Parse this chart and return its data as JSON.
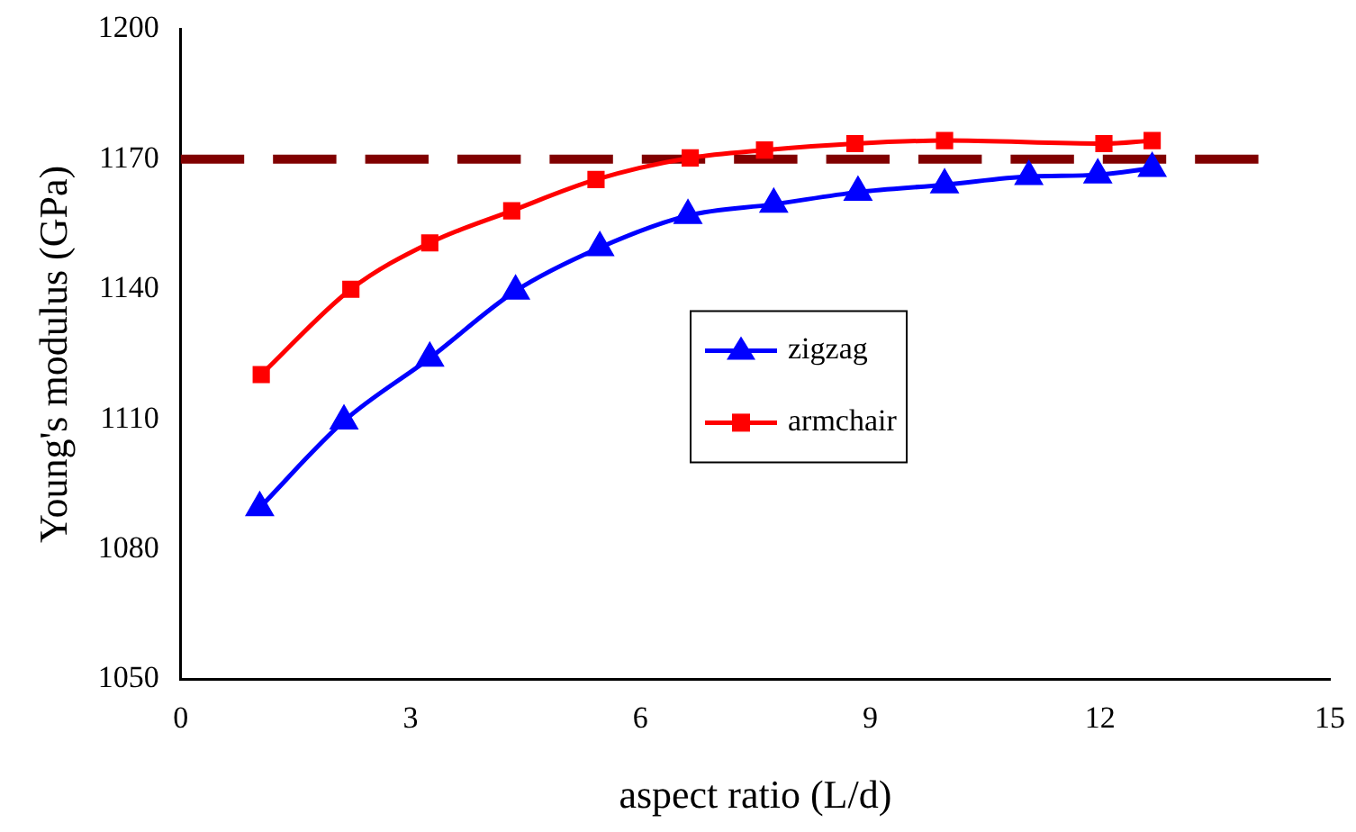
{
  "chart_data": {
    "type": "line",
    "xlabel": "aspect ratio (L/d)",
    "ylabel": "Young's modulus (GPa)",
    "xlim": [
      0,
      15
    ],
    "xticks": [
      0,
      3,
      6,
      9,
      12,
      15
    ],
    "ylim": [
      1050,
      1200
    ],
    "yticks": [
      1050,
      1080,
      1110,
      1140,
      1170,
      1200
    ],
    "grid": false,
    "legend": "right",
    "line_style": "solid",
    "series": [
      {
        "name": "zigzag",
        "color": "#0000ff",
        "marker": "triangle",
        "x": [
          1.03,
          2.13,
          3.25,
          4.37,
          5.47,
          6.62,
          7.74,
          8.84,
          9.97,
          11.07,
          11.97,
          12.68
        ],
        "values": [
          1089.6,
          1109.6,
          1124.1,
          1139.6,
          1149.6,
          1157,
          1159.6,
          1162.4,
          1164.1,
          1166,
          1166.4,
          1167.9
        ]
      },
      {
        "name": "armchair",
        "color": "#ff0000",
        "marker": "square",
        "x": [
          1.05,
          2.22,
          3.25,
          4.32,
          5.42,
          6.65,
          7.62,
          8.8,
          9.97,
          12.05,
          12.68
        ],
        "values": [
          1120.3,
          1140,
          1150.7,
          1158.1,
          1165.3,
          1170.3,
          1172.1,
          1173.6,
          1174.3,
          1173.6,
          1174.3
        ]
      }
    ],
    "ref_lines": [
      {
        "axis": "y",
        "value": 1170,
        "color": "#800000",
        "line_style": "dashed"
      }
    ]
  }
}
